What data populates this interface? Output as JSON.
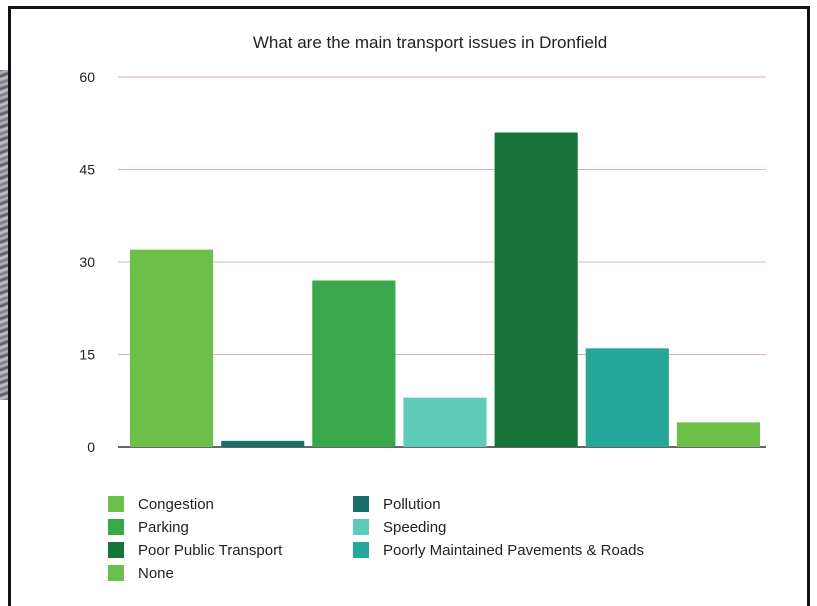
{
  "chart_data": {
    "type": "bar",
    "title": "What are the main transport issues in Dronfield",
    "xlabel": "",
    "ylabel": "",
    "ylim": [
      0,
      60
    ],
    "yticks": [
      "60",
      "45",
      "30",
      "15",
      "0"
    ],
    "grid": true,
    "legend_position": "bottom",
    "categories": [
      "Congestion",
      "Pollution",
      "Parking",
      "Speeding",
      "Poor Public Transport",
      "Poorly Maintained Pavements & Roads",
      "None"
    ],
    "values": [
      32,
      1,
      27,
      8,
      51,
      16,
      4
    ],
    "colors": [
      "#6cc04a",
      "#1b6e6a",
      "#3aa84a",
      "#5dcbb8",
      "#16733a",
      "#27a79a",
      "#6cc04a"
    ]
  },
  "legend": [
    {
      "label": "Congestion",
      "color": "#6cc04a"
    },
    {
      "label": "Pollution",
      "color": "#1b6e6a"
    },
    {
      "label": "Parking",
      "color": "#3aa84a"
    },
    {
      "label": "Speeding",
      "color": "#5dcbb8"
    },
    {
      "label": "Poor Public Transport",
      "color": "#16733a"
    },
    {
      "label": "Poorly Maintained Pavements & Roads",
      "color": "#27a79a"
    },
    {
      "label": "None",
      "color": "#6cc04a"
    }
  ]
}
